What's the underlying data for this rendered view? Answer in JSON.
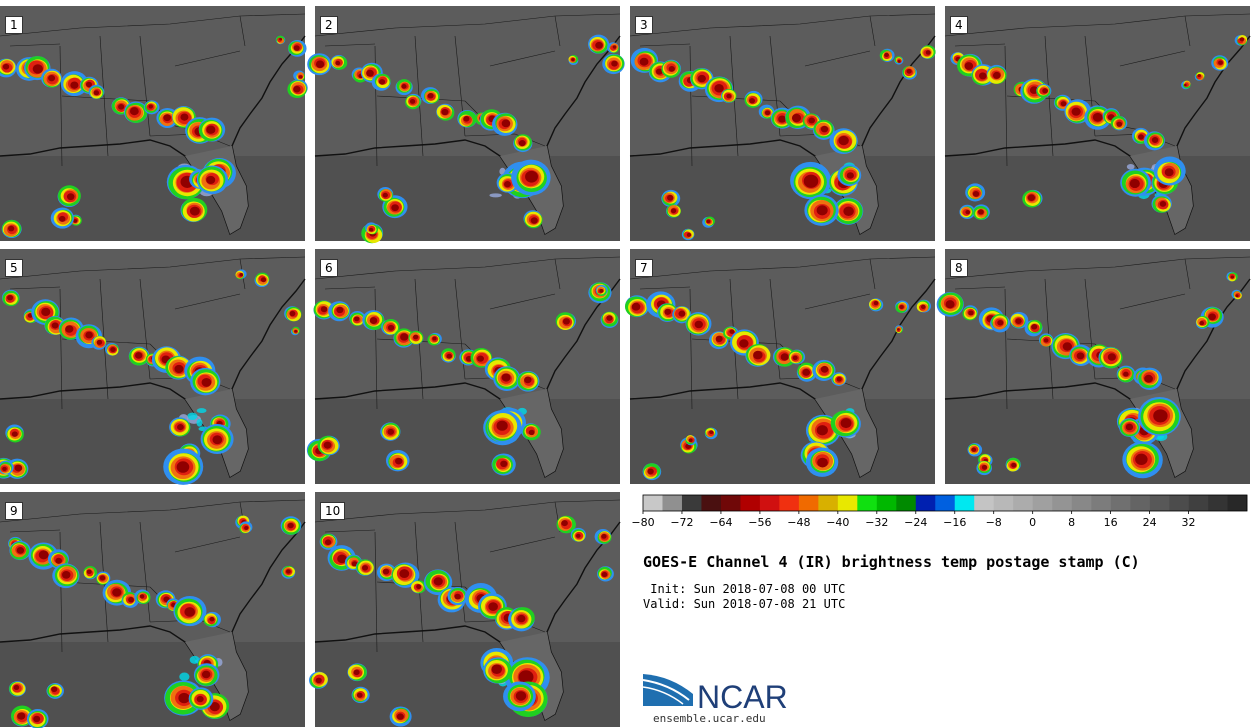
{
  "title": "GOES-E Channel 4 (IR) brightness temp postage stamp (C)",
  "init": " Init: Sun 2018-07-08 00 UTC",
  "valid": "Valid: Sun 2018-07-08 21 UTC",
  "logo_text": "NCAR",
  "logo_url": "ensemble.ucar.edu",
  "colors": {
    "background_gray": "#585858",
    "boundary": "#1a1a1a"
  },
  "panels": [
    {
      "label": "1"
    },
    {
      "label": "2"
    },
    {
      "label": "3"
    },
    {
      "label": "4"
    },
    {
      "label": "5"
    },
    {
      "label": "6"
    },
    {
      "label": "7"
    },
    {
      "label": "8"
    },
    {
      "label": "9"
    },
    {
      "label": "10"
    }
  ],
  "colorbar": {
    "ticks": [
      "−80",
      "−72",
      "−64",
      "−56",
      "−48",
      "−40",
      "−32",
      "−24",
      "−16",
      "−8",
      "0",
      "8",
      "16",
      "24",
      "32"
    ],
    "colors": [
      "#c8c8c8",
      "#909090",
      "#3a3a3a",
      "#4a1010",
      "#700808",
      "#b00000",
      "#d01010",
      "#f03010",
      "#f06a00",
      "#d8b000",
      "#e8e800",
      "#10e010",
      "#00b800",
      "#008a00",
      "#0020b0",
      "#0060e0",
      "#00e8f0",
      "#c4c4c4",
      "#b8b8b8",
      "#acacac",
      "#a0a0a0",
      "#949494",
      "#888888",
      "#7c7c7c",
      "#707070",
      "#646464",
      "#585858",
      "#4c4c4c",
      "#404040",
      "#343434",
      "#282828"
    ]
  }
}
